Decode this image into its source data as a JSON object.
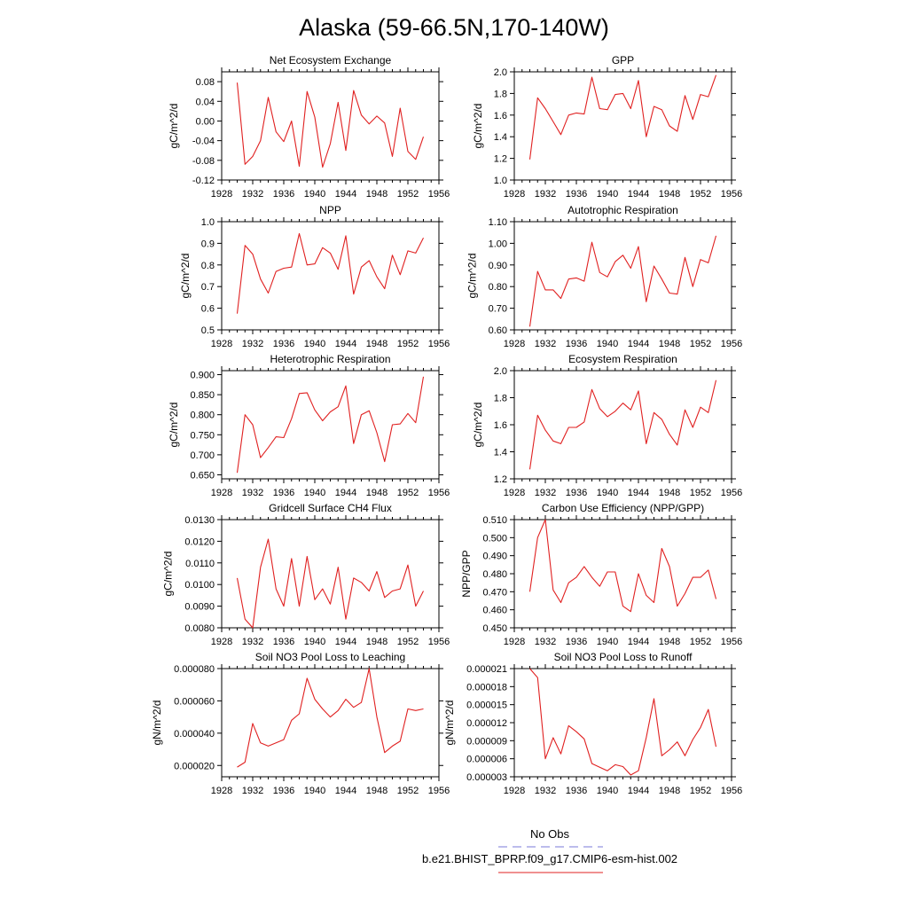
{
  "figure": {
    "title": "Alaska (59-66.5N,170-140W)",
    "legend": {
      "placement": "bottom-center",
      "items": [
        {
          "label": "No Obs",
          "color": "#7a7ad8",
          "dash": "dashed"
        },
        {
          "label": "b.e21.BHIST_BPRP.f09_g17.CMIP6-esm-hist.002",
          "color": "#e02020",
          "dash": "solid"
        }
      ]
    }
  },
  "colors": {
    "series": "#e02020",
    "axis": "#000000"
  },
  "chart_data": [
    {
      "type": "line",
      "title": "Net Ecosystem Exchange",
      "ylabel": "gC/m^2/d",
      "xlim": [
        1928,
        1956
      ],
      "ylim": [
        -0.12,
        0.1
      ],
      "xticks": [
        "1928",
        "1932",
        "1936",
        "1940",
        "1944",
        "1948",
        "1952",
        "1956"
      ],
      "yticks": [
        "-0.12",
        "-0.08",
        "-0.04",
        "0.00",
        "0.04",
        "0.08"
      ],
      "x": [
        1930,
        1931,
        1932,
        1933,
        1934,
        1935,
        1936,
        1937,
        1938,
        1939,
        1940,
        1941,
        1942,
        1943,
        1944,
        1945,
        1946,
        1947,
        1948,
        1949,
        1950,
        1951,
        1952,
        1953,
        1954
      ],
      "series": [
        {
          "values": [
            0.078,
            -0.088,
            -0.072,
            -0.04,
            0.048,
            -0.022,
            -0.042,
            0.0,
            -0.092,
            0.06,
            0.008,
            -0.094,
            -0.046,
            0.038,
            -0.06,
            0.062,
            0.012,
            -0.006,
            0.01,
            -0.004,
            -0.072,
            0.026,
            -0.062,
            -0.078,
            -0.032
          ]
        }
      ]
    },
    {
      "type": "line",
      "title": "GPP",
      "ylabel": "gC/m^2/d",
      "xlim": [
        1928,
        1956
      ],
      "ylim": [
        1.0,
        2.0
      ],
      "xticks": [
        "1928",
        "1932",
        "1936",
        "1940",
        "1944",
        "1948",
        "1952",
        "1956"
      ],
      "yticks": [
        "1.0",
        "1.2",
        "1.4",
        "1.6",
        "1.8",
        "2.0"
      ],
      "x": [
        1930,
        1931,
        1932,
        1933,
        1934,
        1935,
        1936,
        1937,
        1938,
        1939,
        1940,
        1941,
        1942,
        1943,
        1944,
        1945,
        1946,
        1947,
        1948,
        1949,
        1950,
        1951,
        1952,
        1953,
        1954
      ],
      "series": [
        {
          "values": [
            1.19,
            1.76,
            1.66,
            1.54,
            1.42,
            1.6,
            1.62,
            1.61,
            1.95,
            1.66,
            1.65,
            1.79,
            1.8,
            1.66,
            1.92,
            1.4,
            1.68,
            1.65,
            1.5,
            1.45,
            1.78,
            1.56,
            1.79,
            1.77,
            1.97
          ]
        }
      ]
    },
    {
      "type": "line",
      "title": "NPP",
      "ylabel": "gC/m^2/d",
      "xlim": [
        1928,
        1956
      ],
      "ylim": [
        0.5,
        1.0
      ],
      "xticks": [
        "1928",
        "1932",
        "1936",
        "1940",
        "1944",
        "1948",
        "1952",
        "1956"
      ],
      "yticks": [
        "0.5",
        "0.6",
        "0.7",
        "0.8",
        "0.9",
        "1.0"
      ],
      "x": [
        1930,
        1931,
        1932,
        1933,
        1934,
        1935,
        1936,
        1937,
        1938,
        1939,
        1940,
        1941,
        1942,
        1943,
        1944,
        1945,
        1946,
        1947,
        1948,
        1949,
        1950,
        1951,
        1952,
        1953,
        1954
      ],
      "series": [
        {
          "values": [
            0.575,
            0.89,
            0.85,
            0.735,
            0.67,
            0.77,
            0.785,
            0.79,
            0.945,
            0.8,
            0.805,
            0.88,
            0.855,
            0.78,
            0.935,
            0.665,
            0.79,
            0.82,
            0.745,
            0.69,
            0.845,
            0.755,
            0.865,
            0.855,
            0.925
          ]
        }
      ]
    },
    {
      "type": "line",
      "title": "Autotrophic Respiration",
      "ylabel": "gC/m^2/d",
      "xlim": [
        1928,
        1956
      ],
      "ylim": [
        0.6,
        1.1
      ],
      "xticks": [
        "1928",
        "1932",
        "1936",
        "1940",
        "1944",
        "1948",
        "1952",
        "1956"
      ],
      "yticks": [
        "0.60",
        "0.70",
        "0.80",
        "0.90",
        "1.00",
        "1.10"
      ],
      "x": [
        1930,
        1931,
        1932,
        1933,
        1934,
        1935,
        1936,
        1937,
        1938,
        1939,
        1940,
        1941,
        1942,
        1943,
        1944,
        1945,
        1946,
        1947,
        1948,
        1949,
        1950,
        1951,
        1952,
        1953,
        1954
      ],
      "series": [
        {
          "values": [
            0.615,
            0.87,
            0.785,
            0.785,
            0.745,
            0.835,
            0.84,
            0.825,
            1.005,
            0.865,
            0.845,
            0.915,
            0.945,
            0.885,
            0.985,
            0.73,
            0.895,
            0.835,
            0.77,
            0.765,
            0.935,
            0.8,
            0.925,
            0.91,
            1.035
          ]
        }
      ]
    },
    {
      "type": "line",
      "title": "Heterotrophic Respiration",
      "ylabel": "gC/m^2/d",
      "xlim": [
        1928,
        1956
      ],
      "ylim": [
        0.64,
        0.91
      ],
      "xticks": [
        "1928",
        "1932",
        "1936",
        "1940",
        "1944",
        "1948",
        "1952",
        "1956"
      ],
      "yticks": [
        "0.650",
        "0.700",
        "0.750",
        "0.800",
        "0.850",
        "0.900"
      ],
      "x": [
        1930,
        1931,
        1932,
        1933,
        1934,
        1935,
        1936,
        1937,
        1938,
        1939,
        1940,
        1941,
        1942,
        1943,
        1944,
        1945,
        1946,
        1947,
        1948,
        1949,
        1950,
        1951,
        1952,
        1953,
        1954
      ],
      "series": [
        {
          "values": [
            0.655,
            0.8,
            0.775,
            0.693,
            0.718,
            0.745,
            0.743,
            0.79,
            0.853,
            0.855,
            0.812,
            0.785,
            0.807,
            0.82,
            0.872,
            0.728,
            0.8,
            0.81,
            0.755,
            0.683,
            0.775,
            0.777,
            0.803,
            0.78,
            0.895
          ]
        }
      ]
    },
    {
      "type": "line",
      "title": "Ecosystem Respiration",
      "ylabel": "gC/m^2/d",
      "xlim": [
        1928,
        1956
      ],
      "ylim": [
        1.2,
        2.0
      ],
      "xticks": [
        "1928",
        "1932",
        "1936",
        "1940",
        "1944",
        "1948",
        "1952",
        "1956"
      ],
      "yticks": [
        "1.2",
        "1.4",
        "1.6",
        "1.8",
        "2.0"
      ],
      "x": [
        1930,
        1931,
        1932,
        1933,
        1934,
        1935,
        1936,
        1937,
        1938,
        1939,
        1940,
        1941,
        1942,
        1943,
        1944,
        1945,
        1946,
        1947,
        1948,
        1949,
        1950,
        1951,
        1952,
        1953,
        1954
      ],
      "series": [
        {
          "values": [
            1.27,
            1.67,
            1.56,
            1.48,
            1.46,
            1.58,
            1.58,
            1.62,
            1.86,
            1.72,
            1.66,
            1.7,
            1.76,
            1.71,
            1.85,
            1.46,
            1.69,
            1.64,
            1.53,
            1.45,
            1.71,
            1.58,
            1.73,
            1.69,
            1.93
          ]
        }
      ]
    },
    {
      "type": "line",
      "title": "Gridcell Surface CH4 Flux",
      "ylabel": "gC/m^2/d",
      "xlim": [
        1928,
        1956
      ],
      "ylim": [
        0.008,
        0.013
      ],
      "xticks": [
        "1928",
        "1932",
        "1936",
        "1940",
        "1944",
        "1948",
        "1952",
        "1956"
      ],
      "yticks": [
        "0.0080",
        "0.0090",
        "0.0100",
        "0.0110",
        "0.0120",
        "0.0130"
      ],
      "x": [
        1930,
        1931,
        1932,
        1933,
        1934,
        1935,
        1936,
        1937,
        1938,
        1939,
        1940,
        1941,
        1942,
        1943,
        1944,
        1945,
        1946,
        1947,
        1948,
        1949,
        1950,
        1951,
        1952,
        1953,
        1954
      ],
      "series": [
        {
          "values": [
            0.0103,
            0.0084,
            0.008,
            0.0108,
            0.0121,
            0.0098,
            0.009,
            0.0112,
            0.009,
            0.0113,
            0.0093,
            0.0098,
            0.0091,
            0.0108,
            0.0084,
            0.0103,
            0.0101,
            0.0097,
            0.0106,
            0.0094,
            0.0097,
            0.0098,
            0.0109,
            0.009,
            0.0097
          ]
        }
      ]
    },
    {
      "type": "line",
      "title": "Carbon Use Efficiency (NPP/GPP)",
      "ylabel": "NPP/GPP",
      "xlim": [
        1928,
        1956
      ],
      "ylim": [
        0.45,
        0.51
      ],
      "xticks": [
        "1928",
        "1932",
        "1936",
        "1940",
        "1944",
        "1948",
        "1952",
        "1956"
      ],
      "yticks": [
        "0.450",
        "0.460",
        "0.470",
        "0.480",
        "0.490",
        "0.500",
        "0.510"
      ],
      "x": [
        1930,
        1931,
        1932,
        1933,
        1934,
        1935,
        1936,
        1937,
        1938,
        1939,
        1940,
        1941,
        1942,
        1943,
        1944,
        1945,
        1946,
        1947,
        1948,
        1949,
        1950,
        1951,
        1952,
        1953,
        1954
      ],
      "series": [
        {
          "values": [
            0.47,
            0.5,
            0.51,
            0.471,
            0.464,
            0.475,
            0.478,
            0.484,
            0.478,
            0.473,
            0.481,
            0.481,
            0.462,
            0.459,
            0.48,
            0.468,
            0.464,
            0.494,
            0.484,
            0.462,
            0.469,
            0.478,
            0.478,
            0.482,
            0.466
          ]
        }
      ]
    },
    {
      "type": "line",
      "title": "Soil NO3 Pool Loss to Leaching",
      "ylabel": "gN/m^2/d",
      "xlim": [
        1928,
        1956
      ],
      "ylim": [
        1.3e-05,
        8e-05
      ],
      "xticks": [
        "1928",
        "1932",
        "1936",
        "1940",
        "1944",
        "1948",
        "1952",
        "1956"
      ],
      "yticks": [
        "0.000020",
        "0.000040",
        "0.000060",
        "0.000080"
      ],
      "x": [
        1930,
        1931,
        1932,
        1933,
        1934,
        1935,
        1936,
        1937,
        1938,
        1939,
        1940,
        1941,
        1942,
        1943,
        1944,
        1945,
        1946,
        1947,
        1948,
        1949,
        1950,
        1951,
        1952,
        1953,
        1954
      ],
      "series": [
        {
          "values": [
            1.9e-05,
            2.2e-05,
            4.6e-05,
            3.4e-05,
            3.2e-05,
            3.4e-05,
            3.6e-05,
            4.8e-05,
            5.2e-05,
            7.4e-05,
            6.1e-05,
            5.5e-05,
            5e-05,
            5.4e-05,
            6.1e-05,
            5.6e-05,
            5.9e-05,
            8e-05,
            5e-05,
            2.8e-05,
            3.2e-05,
            3.5e-05,
            5.5e-05,
            5.4e-05,
            5.5e-05
          ]
        }
      ]
    },
    {
      "type": "line",
      "title": "Soil NO3 Pool Loss to Runoff",
      "ylabel": "gN/m^2/d",
      "xlim": [
        1928,
        1956
      ],
      "ylim": [
        3e-06,
        2.1e-05
      ],
      "xticks": [
        "1928",
        "1932",
        "1936",
        "1940",
        "1944",
        "1948",
        "1952",
        "1956"
      ],
      "yticks": [
        "0.000003",
        "0.000006",
        "0.000009",
        "0.000012",
        "0.000015",
        "0.000018",
        "0.000021"
      ],
      "x": [
        1930,
        1931,
        1932,
        1933,
        1934,
        1935,
        1936,
        1937,
        1938,
        1939,
        1940,
        1941,
        1942,
        1943,
        1944,
        1945,
        1946,
        1947,
        1948,
        1949,
        1950,
        1951,
        1952,
        1953,
        1954
      ],
      "series": [
        {
          "values": [
            2.1e-05,
            1.95e-05,
            6e-06,
            9.5e-06,
            6.8e-06,
            1.15e-05,
            1.05e-05,
            9.3e-06,
            5.2e-06,
            4.6e-06,
            4e-06,
            5e-06,
            4.7e-06,
            3.3e-06,
            4e-06,
            9.5e-06,
            1.6e-05,
            6.5e-06,
            7.5e-06,
            8.8e-06,
            6.5e-06,
            9.2e-06,
            1.12e-05,
            1.42e-05,
            8e-06
          ]
        }
      ]
    }
  ]
}
